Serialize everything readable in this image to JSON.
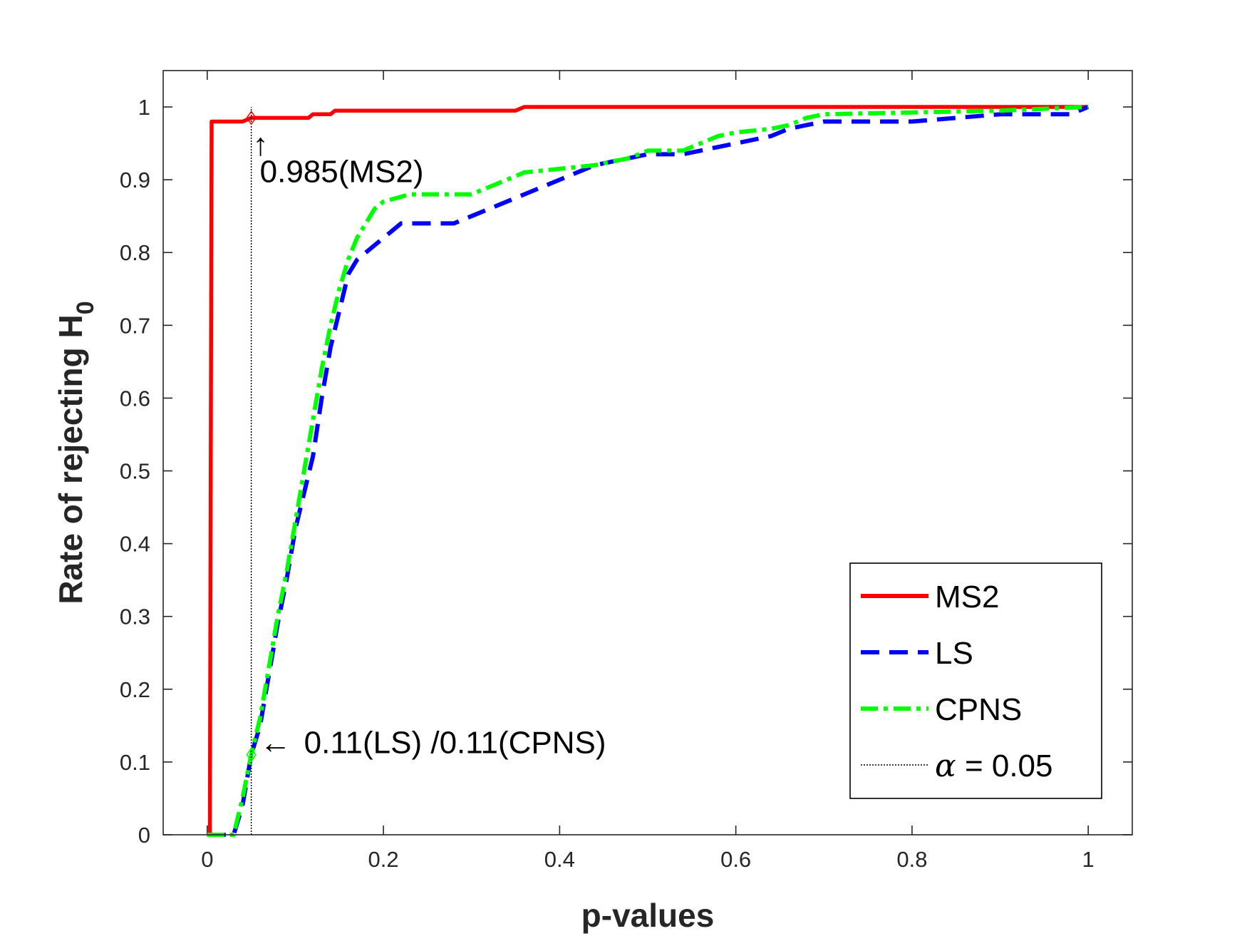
{
  "chart_data": {
    "type": "line",
    "title": "",
    "xlabel": "p-values",
    "ylabel": {
      "main": "Rate of rejecting H",
      "subscript": "0"
    },
    "xlim": [
      -0.05,
      1.05
    ],
    "ylim": [
      0,
      1.05
    ],
    "xticks": [
      0,
      0.2,
      0.4,
      0.6,
      0.8,
      1
    ],
    "xtick_labels": [
      "0",
      "0.2",
      "0.4",
      "0.6",
      "0.8",
      "1"
    ],
    "yticks": [
      0,
      0.1,
      0.2,
      0.3,
      0.4,
      0.5,
      0.6,
      0.7,
      0.8,
      0.9,
      1
    ],
    "ytick_labels": [
      "0",
      "0.1",
      "0.2",
      "0.3",
      "0.4",
      "0.5",
      "0.6",
      "0.7",
      "0.8",
      "0.9",
      "1"
    ],
    "grid": false,
    "legend_position": "bottom-right",
    "series": [
      {
        "name": "MS2",
        "color": "#ff0000",
        "style": "solid",
        "points": [
          [
            0,
            0
          ],
          [
            0.003,
            0
          ],
          [
            0.005,
            0.98
          ],
          [
            0.04,
            0.98
          ],
          [
            0.05,
            0.985
          ],
          [
            0.115,
            0.985
          ],
          [
            0.12,
            0.99
          ],
          [
            0.14,
            0.99
          ],
          [
            0.145,
            0.995
          ],
          [
            0.35,
            0.995
          ],
          [
            0.36,
            1
          ],
          [
            1,
            1
          ]
        ]
      },
      {
        "name": "LS",
        "color": "#0000ff",
        "style": "dashed",
        "points": [
          [
            0,
            0
          ],
          [
            0.03,
            0
          ],
          [
            0.04,
            0.04
          ],
          [
            0.05,
            0.11
          ],
          [
            0.06,
            0.15
          ],
          [
            0.07,
            0.22
          ],
          [
            0.08,
            0.29
          ],
          [
            0.09,
            0.35
          ],
          [
            0.1,
            0.42
          ],
          [
            0.11,
            0.47
          ],
          [
            0.12,
            0.52
          ],
          [
            0.13,
            0.6
          ],
          [
            0.14,
            0.67
          ],
          [
            0.15,
            0.72
          ],
          [
            0.16,
            0.77
          ],
          [
            0.17,
            0.79
          ],
          [
            0.18,
            0.8
          ],
          [
            0.2,
            0.82
          ],
          [
            0.22,
            0.84
          ],
          [
            0.28,
            0.84
          ],
          [
            0.3,
            0.85
          ],
          [
            0.32,
            0.86
          ],
          [
            0.34,
            0.87
          ],
          [
            0.36,
            0.88
          ],
          [
            0.38,
            0.89
          ],
          [
            0.4,
            0.9
          ],
          [
            0.42,
            0.91
          ],
          [
            0.44,
            0.92
          ],
          [
            0.46,
            0.925
          ],
          [
            0.48,
            0.93
          ],
          [
            0.5,
            0.935
          ],
          [
            0.54,
            0.935
          ],
          [
            0.56,
            0.94
          ],
          [
            0.58,
            0.945
          ],
          [
            0.6,
            0.95
          ],
          [
            0.64,
            0.96
          ],
          [
            0.66,
            0.97
          ],
          [
            0.68,
            0.975
          ],
          [
            0.7,
            0.98
          ],
          [
            0.8,
            0.98
          ],
          [
            0.85,
            0.985
          ],
          [
            0.9,
            0.99
          ],
          [
            0.98,
            0.99
          ],
          [
            1,
            1
          ]
        ]
      },
      {
        "name": "CPNS",
        "color": "#00ff00",
        "style": "dashdot",
        "points": [
          [
            0,
            0
          ],
          [
            0.03,
            0
          ],
          [
            0.04,
            0.05
          ],
          [
            0.05,
            0.11
          ],
          [
            0.06,
            0.16
          ],
          [
            0.07,
            0.23
          ],
          [
            0.08,
            0.3
          ],
          [
            0.09,
            0.36
          ],
          [
            0.1,
            0.43
          ],
          [
            0.11,
            0.5
          ],
          [
            0.12,
            0.57
          ],
          [
            0.13,
            0.64
          ],
          [
            0.14,
            0.7
          ],
          [
            0.15,
            0.75
          ],
          [
            0.16,
            0.79
          ],
          [
            0.17,
            0.82
          ],
          [
            0.18,
            0.84
          ],
          [
            0.19,
            0.86
          ],
          [
            0.2,
            0.87
          ],
          [
            0.23,
            0.88
          ],
          [
            0.3,
            0.88
          ],
          [
            0.32,
            0.89
          ],
          [
            0.34,
            0.9
          ],
          [
            0.36,
            0.91
          ],
          [
            0.4,
            0.915
          ],
          [
            0.44,
            0.92
          ],
          [
            0.46,
            0.925
          ],
          [
            0.48,
            0.93
          ],
          [
            0.5,
            0.94
          ],
          [
            0.54,
            0.94
          ],
          [
            0.56,
            0.95
          ],
          [
            0.58,
            0.96
          ],
          [
            0.6,
            0.965
          ],
          [
            0.64,
            0.97
          ],
          [
            0.66,
            0.975
          ],
          [
            0.68,
            0.985
          ],
          [
            0.7,
            0.99
          ],
          [
            0.9,
            0.995
          ],
          [
            1,
            1
          ]
        ]
      }
    ],
    "reference_line": {
      "name": "α = 0.05",
      "x": 0.05,
      "color": "#000000",
      "style": "dotted"
    },
    "annotations": [
      {
        "text": "0.985(MS2)",
        "arrow": "↑",
        "x": 0.05,
        "y": 0.985,
        "marker_color": "#ff0000"
      },
      {
        "text": "0.11(LS) /0.11(CPNS)",
        "arrow": "←",
        "x": 0.05,
        "y": 0.11,
        "marker_color": "#00ff00"
      }
    ],
    "legend": {
      "entries": [
        "MS2",
        "LS",
        "CPNS"
      ],
      "alpha_symbol": "α",
      "alpha_rest": " = 0.05"
    }
  }
}
